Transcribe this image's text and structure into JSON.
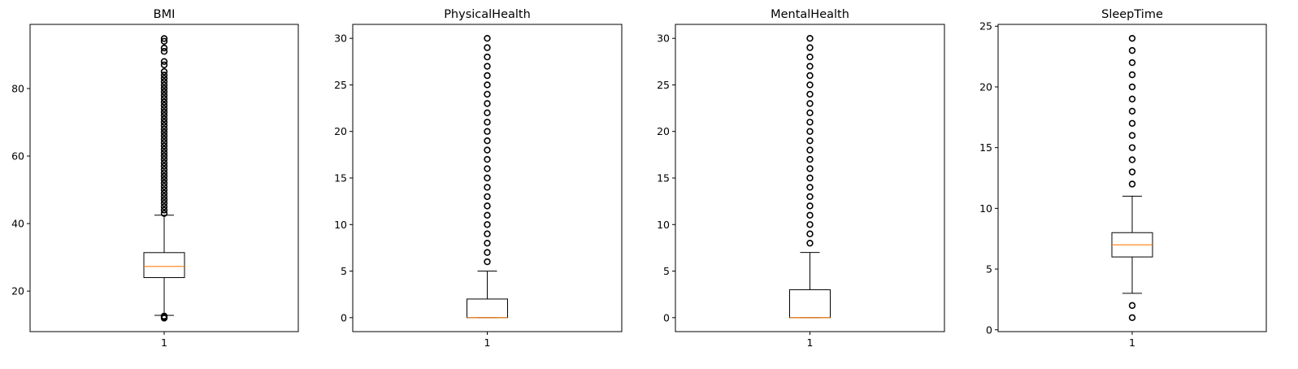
{
  "chart_data": [
    {
      "type": "box",
      "title": "BMI",
      "categories": [
        "1"
      ],
      "ylim": [
        8,
        99
      ],
      "yticks": [
        20,
        40,
        60,
        80
      ],
      "box": {
        "whisker_low": 12.8,
        "q1": 24.0,
        "median": 27.3,
        "q3": 31.4,
        "whisker_high": 42.5
      },
      "outliers": [
        12.0,
        12.3,
        12.6,
        43,
        44,
        45,
        46,
        47,
        48,
        49,
        50,
        51,
        52,
        53,
        54,
        55,
        56,
        57,
        58,
        59,
        60,
        61,
        62,
        63,
        64,
        65,
        66,
        67,
        68,
        69,
        70,
        71,
        72,
        73,
        74,
        75,
        76,
        77,
        78,
        79,
        80,
        81,
        82,
        83,
        84,
        85,
        87,
        88,
        91,
        92,
        94,
        94.8
      ]
    },
    {
      "type": "box",
      "title": "PhysicalHealth",
      "categories": [
        "1"
      ],
      "ylim": [
        -1.5,
        31.5
      ],
      "yticks": [
        0,
        5,
        10,
        15,
        20,
        25,
        30
      ],
      "box": {
        "whisker_low": 0,
        "q1": 0,
        "median": 0,
        "q3": 2,
        "whisker_high": 5
      },
      "outliers": [
        6,
        7,
        8,
        9,
        10,
        11,
        12,
        13,
        14,
        15,
        16,
        17,
        18,
        19,
        20,
        21,
        22,
        23,
        24,
        25,
        26,
        27,
        28,
        29,
        30
      ]
    },
    {
      "type": "box",
      "title": "MentalHealth",
      "categories": [
        "1"
      ],
      "ylim": [
        -1.5,
        31.5
      ],
      "yticks": [
        0,
        5,
        10,
        15,
        20,
        25,
        30
      ],
      "box": {
        "whisker_low": 0,
        "q1": 0,
        "median": 0,
        "q3": 3,
        "whisker_high": 7
      },
      "outliers": [
        8,
        9,
        10,
        11,
        12,
        13,
        14,
        15,
        16,
        17,
        18,
        19,
        20,
        21,
        22,
        23,
        24,
        25,
        26,
        27,
        28,
        29,
        30
      ]
    },
    {
      "type": "box",
      "title": "SleepTime",
      "categories": [
        "1"
      ],
      "ylim": [
        -0.15,
        25.15
      ],
      "yticks": [
        0,
        5,
        10,
        15,
        20,
        25
      ],
      "box": {
        "whisker_low": 3,
        "q1": 6,
        "median": 7,
        "q3": 8,
        "whisker_high": 11
      },
      "outliers": [
        1,
        2,
        12,
        13,
        14,
        15,
        16,
        17,
        18,
        19,
        20,
        21,
        22,
        23,
        24
      ]
    }
  ],
  "colors": {
    "median": "#ff7f0e",
    "box": "#000000",
    "axes": "#000000"
  }
}
